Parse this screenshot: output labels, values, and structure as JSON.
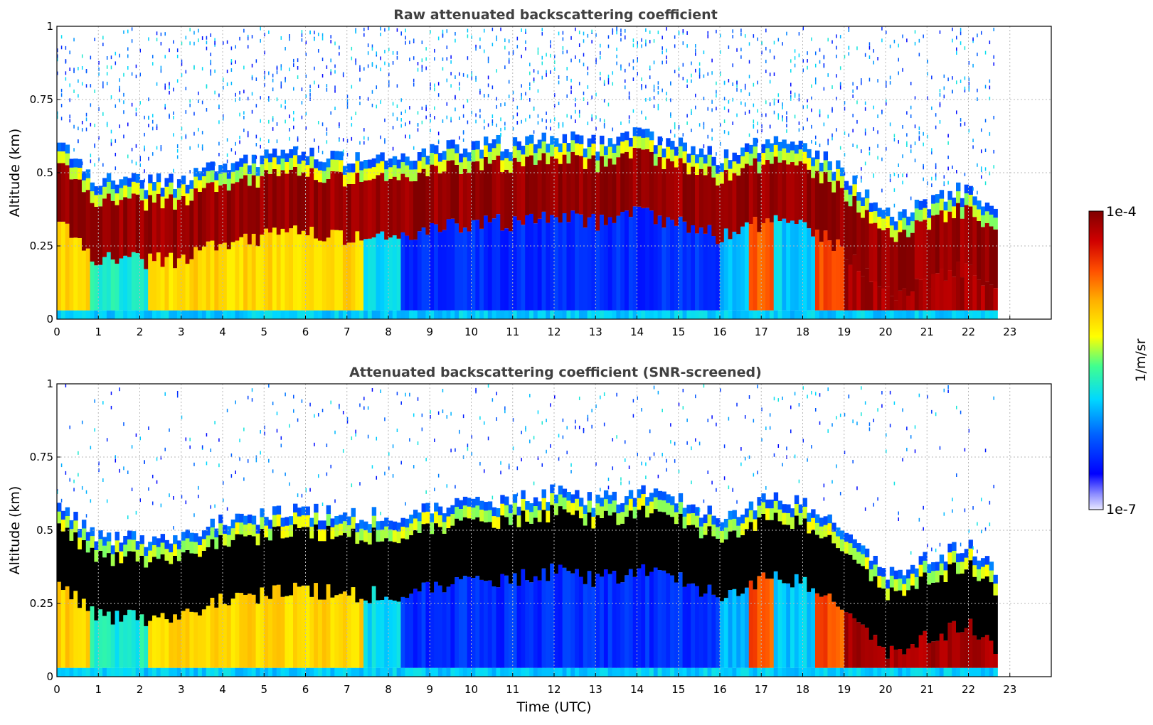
{
  "colors": {
    "colormap": [
      "#e8e8ff",
      "#0000ff",
      "#00c8ff",
      "#ffff00",
      "#ff6000",
      "#8b0000"
    ],
    "saturated_screened": "#000000",
    "grid": "#b8b8b8"
  },
  "chart_data": [
    {
      "type": "heatmap",
      "title": "Raw attenuated backscattering coefficient",
      "xlabel": "",
      "ylabel": "Altitude (km)",
      "xlim": [
        0,
        24
      ],
      "ylim": [
        0,
        1
      ],
      "x_ticks": [
        "0",
        "1",
        "2",
        "3",
        "4",
        "5",
        "6",
        "7",
        "8",
        "9",
        "10",
        "11",
        "12",
        "13",
        "14",
        "15",
        "16",
        "17",
        "18",
        "19",
        "20",
        "21",
        "22",
        "23"
      ],
      "y_ticks": [
        "0",
        "0.25",
        "0.5",
        "0.75",
        "1"
      ],
      "grid": true,
      "data_end_utc": 22.7,
      "colorbar": {
        "label": "1/m/sr",
        "min": "1e-7",
        "max": "1e-4",
        "scale": "log"
      },
      "features": [
        {
          "feature": "boundary layer top altitude (km)",
          "time_utc": [
            0,
            1,
            2,
            3,
            4,
            5,
            6,
            7,
            8,
            9,
            10,
            11,
            12,
            13,
            14,
            15,
            16,
            17,
            18,
            19,
            20,
            21,
            22,
            22.7
          ],
          "altitude_km": [
            0.55,
            0.42,
            0.42,
            0.42,
            0.48,
            0.5,
            0.52,
            0.5,
            0.5,
            0.52,
            0.55,
            0.55,
            0.58,
            0.55,
            0.58,
            0.55,
            0.5,
            0.55,
            0.55,
            0.45,
            0.3,
            0.35,
            0.4,
            0.3
          ]
        }
      ]
    },
    {
      "type": "heatmap",
      "title": "Attenuated backscattering coefficient (SNR-screened)",
      "xlabel": "Time (UTC)",
      "ylabel": "Altitude (km)",
      "xlim": [
        0,
        24
      ],
      "ylim": [
        0,
        1
      ],
      "x_ticks": [
        "0",
        "1",
        "2",
        "3",
        "4",
        "5",
        "6",
        "7",
        "8",
        "9",
        "10",
        "11",
        "12",
        "13",
        "14",
        "15",
        "16",
        "17",
        "18",
        "19",
        "20",
        "21",
        "22",
        "23"
      ],
      "y_ticks": [
        "0",
        "0.25",
        "0.5",
        "0.75",
        "1"
      ],
      "grid": true,
      "data_end_utc": 22.7,
      "colorbar": {
        "label": "1/m/sr",
        "min": "1e-7",
        "max": "1e-4",
        "scale": "log"
      }
    }
  ]
}
